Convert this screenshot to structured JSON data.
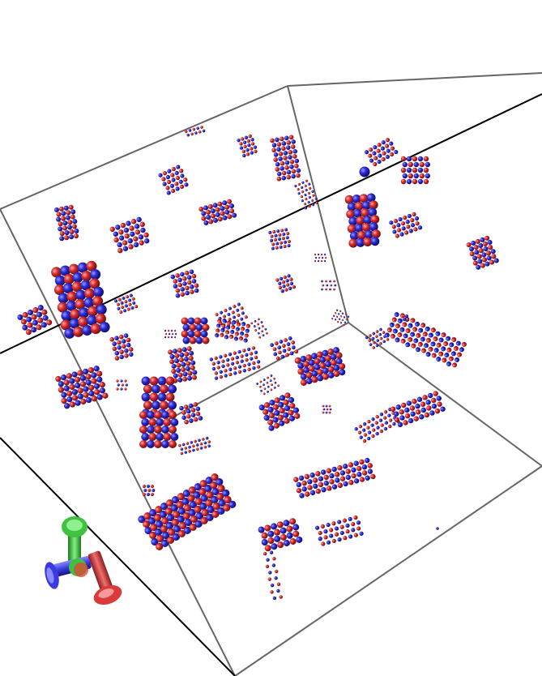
{
  "scene": {
    "kind": "molecular-visualization",
    "background": "#ffffff",
    "cation_color": "#2b2bd6",
    "anion_color": "#d92a2a",
    "box_edge_color": "#666666",
    "ray_color": "#000000"
  },
  "axes_gizmo": {
    "x_color": "#4a4ae0",
    "y_color": "#3fc23f",
    "z_color": "#e04848"
  }
}
